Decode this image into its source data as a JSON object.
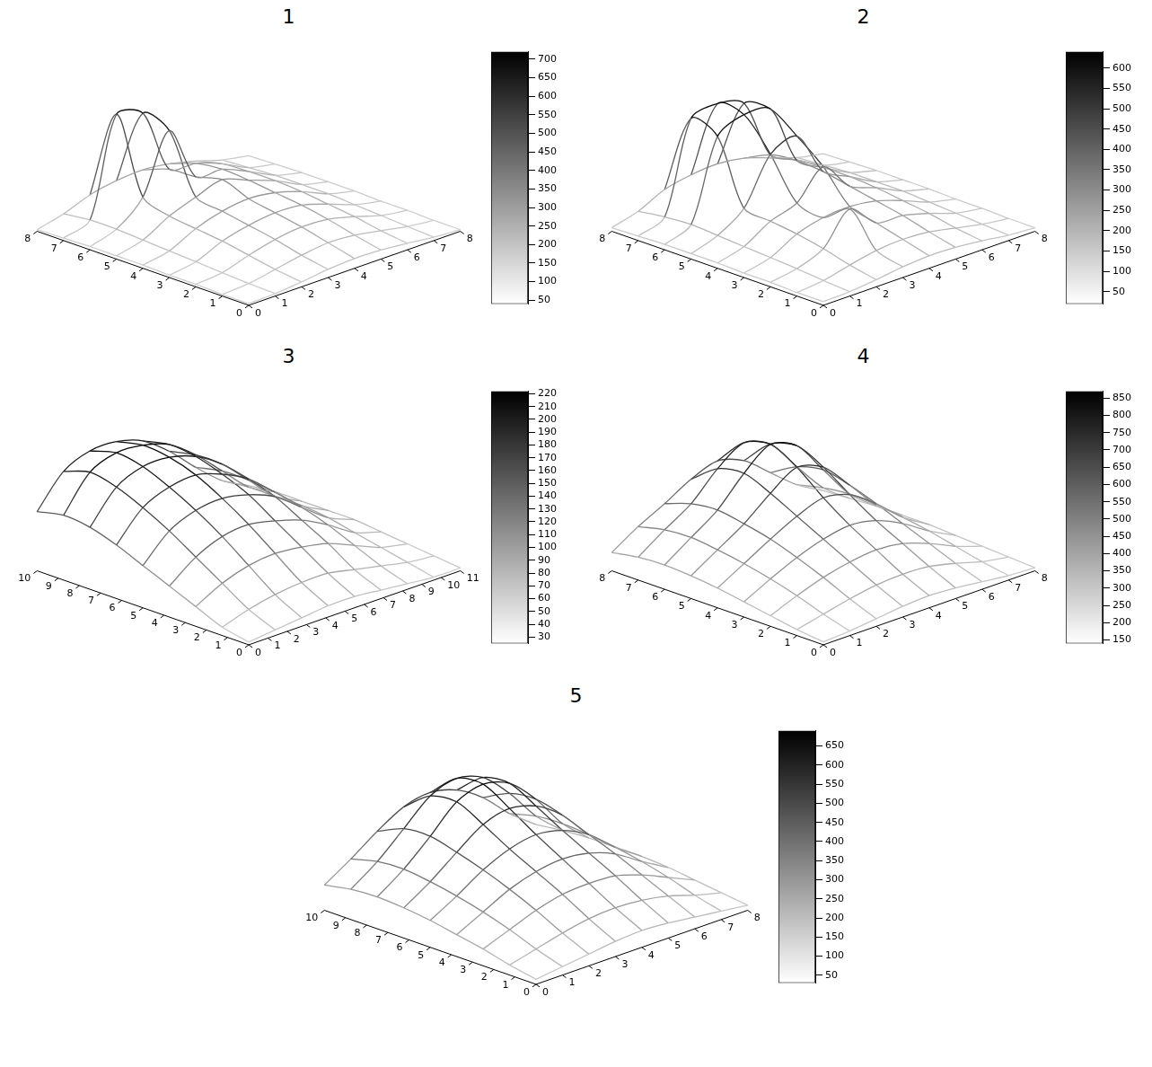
{
  "chart_data": [
    {
      "type": "surface",
      "title": "1",
      "xlim": [
        0,
        8
      ],
      "ylim": [
        0,
        8
      ],
      "xticks": [
        0,
        1,
        2,
        3,
        4,
        5,
        6,
        7,
        8
      ],
      "yticks": [
        0,
        1,
        2,
        3,
        4,
        5,
        6,
        7,
        8
      ],
      "z": [
        [
          50,
          55,
          70,
          90,
          100,
          95,
          80,
          60,
          50
        ],
        [
          50,
          60,
          90,
          120,
          140,
          130,
          100,
          70,
          50
        ],
        [
          55,
          70,
          120,
          160,
          180,
          170,
          130,
          80,
          55
        ],
        [
          55,
          80,
          150,
          190,
          210,
          200,
          150,
          90,
          55
        ],
        [
          60,
          90,
          170,
          220,
          240,
          220,
          170,
          100,
          60
        ],
        [
          60,
          100,
          190,
          250,
          300,
          240,
          180,
          100,
          60
        ],
        [
          60,
          110,
          250,
          600,
          260,
          250,
          180,
          100,
          60
        ],
        [
          55,
          110,
          700,
          650,
          250,
          230,
          170,
          90,
          55
        ],
        [
          50,
          90,
          150,
          180,
          190,
          170,
          130,
          80,
          50
        ]
      ],
      "colorbar": {
        "range": [
          40,
          720
        ],
        "ticks": [
          50,
          100,
          150,
          200,
          250,
          300,
          350,
          400,
          450,
          500,
          550,
          600,
          650,
          700
        ]
      }
    },
    {
      "type": "surface",
      "title": "2",
      "xlim": [
        0,
        8
      ],
      "ylim": [
        0,
        8
      ],
      "xticks": [
        0,
        1,
        2,
        3,
        4,
        5,
        6,
        7,
        8
      ],
      "yticks": [
        0,
        1,
        2,
        3,
        4,
        5,
        6,
        7,
        8
      ],
      "z": [
        [
          40,
          45,
          60,
          80,
          90,
          85,
          70,
          50,
          40
        ],
        [
          40,
          55,
          90,
          120,
          130,
          120,
          90,
          60,
          40
        ],
        [
          45,
          70,
          130,
          300,
          170,
          160,
          120,
          70,
          45
        ],
        [
          45,
          80,
          160,
          200,
          210,
          190,
          140,
          80,
          45
        ],
        [
          50,
          90,
          180,
          230,
          380,
          220,
          160,
          90,
          50
        ],
        [
          50,
          100,
          200,
          450,
          500,
          250,
          170,
          90,
          50
        ],
        [
          50,
          110,
          550,
          620,
          600,
          260,
          170,
          90,
          50
        ],
        [
          45,
          100,
          600,
          630,
          580,
          240,
          160,
          80,
          45
        ],
        [
          40,
          80,
          150,
          180,
          190,
          170,
          120,
          70,
          40
        ]
      ],
      "colorbar": {
        "range": [
          20,
          640
        ],
        "ticks": [
          50,
          100,
          150,
          200,
          250,
          300,
          350,
          400,
          450,
          500,
          550,
          600
        ]
      }
    },
    {
      "type": "surface",
      "title": "3",
      "xlim": [
        0,
        10
      ],
      "ylim": [
        0,
        11
      ],
      "xticks": [
        0,
        1,
        2,
        3,
        4,
        5,
        6,
        7,
        8,
        9,
        10
      ],
      "yticks": [
        0,
        1,
        2,
        3,
        4,
        5,
        6,
        7,
        8,
        9,
        10,
        11
      ],
      "z": [
        [
          30,
          35,
          40,
          45,
          45,
          40,
          35,
          30,
          30
        ],
        [
          40,
          55,
          65,
          70,
          70,
          60,
          50,
          40,
          35
        ],
        [
          60,
          85,
          100,
          105,
          100,
          90,
          70,
          50,
          40
        ],
        [
          80,
          115,
          135,
          140,
          130,
          115,
          90,
          60,
          45
        ],
        [
          100,
          145,
          165,
          170,
          160,
          140,
          105,
          70,
          50
        ],
        [
          120,
          170,
          190,
          195,
          180,
          155,
          115,
          75,
          50
        ],
        [
          135,
          190,
          210,
          210,
          195,
          165,
          120,
          75,
          50
        ],
        [
          140,
          200,
          218,
          215,
          200,
          165,
          120,
          75,
          50
        ],
        [
          130,
          185,
          205,
          205,
          190,
          155,
          110,
          70,
          45
        ]
      ],
      "colorbar": {
        "range": [
          25,
          222
        ],
        "ticks": [
          30,
          40,
          50,
          60,
          70,
          80,
          90,
          100,
          110,
          120,
          130,
          140,
          150,
          160,
          170,
          180,
          190,
          200,
          210,
          220
        ]
      }
    },
    {
      "type": "surface",
      "title": "4",
      "xlim": [
        0,
        8
      ],
      "ylim": [
        0,
        8
      ],
      "xticks": [
        0,
        1,
        2,
        3,
        4,
        5,
        6,
        7,
        8
      ],
      "yticks": [
        0,
        1,
        2,
        3,
        4,
        5,
        6,
        7,
        8
      ],
      "z": [
        [
          160,
          170,
          190,
          210,
          220,
          210,
          190,
          170,
          160
        ],
        [
          180,
          220,
          260,
          290,
          300,
          290,
          250,
          200,
          170
        ],
        [
          210,
          280,
          340,
          380,
          400,
          380,
          320,
          240,
          180
        ],
        [
          240,
          330,
          410,
          470,
          500,
          470,
          390,
          280,
          190
        ],
        [
          270,
          370,
          470,
          560,
          620,
          580,
          460,
          310,
          200
        ],
        [
          290,
          400,
          510,
          650,
          760,
          700,
          520,
          330,
          200
        ],
        [
          300,
          420,
          540,
          720,
          850,
          780,
          560,
          340,
          200
        ],
        [
          290,
          410,
          520,
          690,
          800,
          730,
          520,
          320,
          190
        ],
        [
          260,
          370,
          460,
          560,
          620,
          560,
          420,
          280,
          180
        ]
      ],
      "colorbar": {
        "range": [
          140,
          870
        ],
        "ticks": [
          150,
          200,
          250,
          300,
          350,
          400,
          450,
          500,
          550,
          600,
          650,
          700,
          750,
          800,
          850
        ]
      }
    },
    {
      "type": "surface",
      "title": "5",
      "xlim": [
        0,
        10
      ],
      "ylim": [
        0,
        8
      ],
      "xticks": [
        0,
        1,
        2,
        3,
        4,
        5,
        6,
        7,
        8,
        9,
        10
      ],
      "yticks": [
        0,
        1,
        2,
        3,
        4,
        5,
        6,
        7,
        8
      ],
      "z": [
        [
          60,
          80,
          100,
          120,
          130,
          120,
          100,
          80,
          60
        ],
        [
          90,
          130,
          170,
          200,
          210,
          200,
          170,
          120,
          80
        ],
        [
          130,
          190,
          250,
          290,
          300,
          290,
          240,
          170,
          100
        ],
        [
          160,
          240,
          320,
          370,
          390,
          370,
          310,
          210,
          120
        ],
        [
          190,
          280,
          380,
          450,
          480,
          450,
          370,
          240,
          130
        ],
        [
          210,
          310,
          430,
          540,
          580,
          540,
          430,
          260,
          130
        ],
        [
          220,
          330,
          470,
          620,
          670,
          620,
          470,
          270,
          130
        ],
        [
          210,
          320,
          460,
          600,
          650,
          600,
          450,
          260,
          120
        ],
        [
          180,
          280,
          390,
          480,
          510,
          470,
          370,
          220,
          100
        ]
      ],
      "colorbar": {
        "range": [
          30,
          690
        ],
        "ticks": [
          50,
          100,
          150,
          200,
          250,
          300,
          350,
          400,
          450,
          500,
          550,
          600,
          650
        ]
      }
    }
  ]
}
